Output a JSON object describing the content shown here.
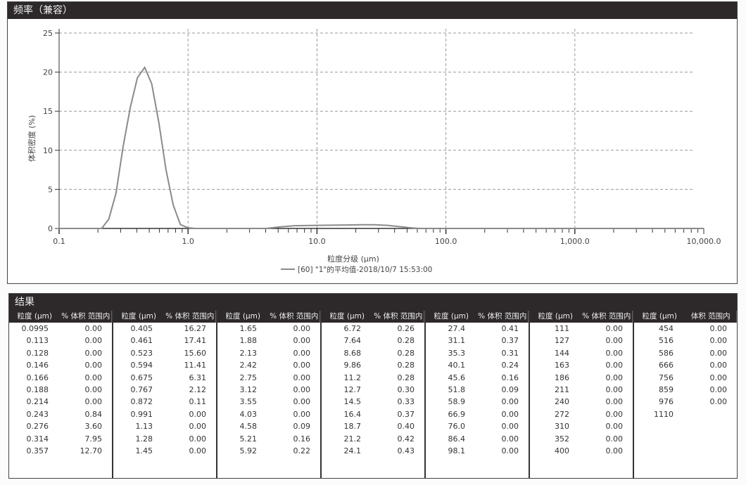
{
  "chart_panel": {
    "title": "频率（兼容）"
  },
  "chart_data": {
    "type": "line",
    "xlabel": "粒度分级 (µm)",
    "ylabel": "体积密度 (%)",
    "x_scale": "log",
    "xlim": [
      0.1,
      10000
    ],
    "ylim": [
      0,
      25
    ],
    "x_ticks": [
      "0.1",
      "1.0",
      "10.0",
      "100.0",
      "1,000.0",
      "10,000.0"
    ],
    "y_ticks": [
      "0",
      "5",
      "10",
      "15",
      "20",
      "25"
    ],
    "grid": true,
    "legend_position": "bottom-center",
    "series": [
      {
        "name": "[60] \"1\"的平均值-2018/10/7 15:53:00",
        "color": "#8a8a8a",
        "x": [
          0.0995,
          0.214,
          0.243,
          0.276,
          0.314,
          0.357,
          0.405,
          0.461,
          0.523,
          0.594,
          0.675,
          0.767,
          0.872,
          0.991,
          1.13,
          4.03,
          4.58,
          5.21,
          6.72,
          9.86,
          14.5,
          21.2,
          27.4,
          35.3,
          45.6,
          51.8,
          58.9,
          66.9,
          10000
        ],
        "y": [
          0,
          0,
          1.2,
          4.5,
          10.5,
          15.5,
          19.3,
          20.6,
          18.5,
          13.5,
          7.5,
          3.0,
          0.5,
          0.1,
          0,
          0,
          0.1,
          0.2,
          0.35,
          0.4,
          0.42,
          0.47,
          0.48,
          0.4,
          0.2,
          0.1,
          0.02,
          0,
          0
        ]
      }
    ]
  },
  "results": {
    "title": "结果",
    "headers": [
      [
        "粒度 (µm)",
        "% 体积 范围内"
      ],
      [
        "粒度 (µm)",
        "% 体积 范围内"
      ],
      [
        "粒度 (µm)",
        "% 体积 范围内"
      ],
      [
        "粒度 (µm)",
        "% 体积 范围内"
      ],
      [
        "粒度 (µm)",
        "% 体积 范围内"
      ],
      [
        "粒度 (µm)",
        "% 体积 范围内"
      ],
      [
        "粒度 (µm)",
        "体积 范围内"
      ]
    ],
    "groups": [
      [
        [
          "0.0995",
          "0.00"
        ],
        [
          "0.113",
          "0.00"
        ],
        [
          "0.128",
          "0.00"
        ],
        [
          "0.146",
          "0.00"
        ],
        [
          "0.166",
          "0.00"
        ],
        [
          "0.188",
          "0.00"
        ],
        [
          "0.214",
          "0.00"
        ],
        [
          "0.243",
          "0.84"
        ],
        [
          "0.276",
          "3.60"
        ],
        [
          "0.314",
          "7.95"
        ],
        [
          "0.357",
          "12.70"
        ]
      ],
      [
        [
          "0.405",
          "16.27"
        ],
        [
          "0.461",
          "17.41"
        ],
        [
          "0.523",
          "15.60"
        ],
        [
          "0.594",
          "11.41"
        ],
        [
          "0.675",
          "6.31"
        ],
        [
          "0.767",
          "2.12"
        ],
        [
          "0.872",
          "0.11"
        ],
        [
          "0.991",
          "0.00"
        ],
        [
          "1.13",
          "0.00"
        ],
        [
          "1.28",
          "0.00"
        ],
        [
          "1.45",
          "0.00"
        ]
      ],
      [
        [
          "1.65",
          "0.00"
        ],
        [
          "1.88",
          "0.00"
        ],
        [
          "2.13",
          "0.00"
        ],
        [
          "2.42",
          "0.00"
        ],
        [
          "2.75",
          "0.00"
        ],
        [
          "3.12",
          "0.00"
        ],
        [
          "3.55",
          "0.00"
        ],
        [
          "4.03",
          "0.00"
        ],
        [
          "4.58",
          "0.09"
        ],
        [
          "5.21",
          "0.16"
        ],
        [
          "5.92",
          "0.22"
        ]
      ],
      [
        [
          "6.72",
          "0.26"
        ],
        [
          "7.64",
          "0.28"
        ],
        [
          "8.68",
          "0.28"
        ],
        [
          "9.86",
          "0.28"
        ],
        [
          "11.2",
          "0.28"
        ],
        [
          "12.7",
          "0.30"
        ],
        [
          "14.5",
          "0.33"
        ],
        [
          "16.4",
          "0.37"
        ],
        [
          "18.7",
          "0.40"
        ],
        [
          "21.2",
          "0.42"
        ],
        [
          "24.1",
          "0.43"
        ]
      ],
      [
        [
          "27.4",
          "0.41"
        ],
        [
          "31.1",
          "0.37"
        ],
        [
          "35.3",
          "0.31"
        ],
        [
          "40.1",
          "0.24"
        ],
        [
          "45.6",
          "0.16"
        ],
        [
          "51.8",
          "0.09"
        ],
        [
          "58.9",
          "0.00"
        ],
        [
          "66.9",
          "0.00"
        ],
        [
          "76.0",
          "0.00"
        ],
        [
          "86.4",
          "0.00"
        ],
        [
          "98.1",
          "0.00"
        ]
      ],
      [
        [
          "111",
          "0.00"
        ],
        [
          "127",
          "0.00"
        ],
        [
          "144",
          "0.00"
        ],
        [
          "163",
          "0.00"
        ],
        [
          "186",
          "0.00"
        ],
        [
          "211",
          "0.00"
        ],
        [
          "240",
          "0.00"
        ],
        [
          "272",
          "0.00"
        ],
        [
          "310",
          "0.00"
        ],
        [
          "352",
          "0.00"
        ],
        [
          "400",
          "0.00"
        ]
      ],
      [
        [
          "454",
          "0.00"
        ],
        [
          "516",
          "0.00"
        ],
        [
          "586",
          "0.00"
        ],
        [
          "666",
          "0.00"
        ],
        [
          "756",
          "0.00"
        ],
        [
          "859",
          "0.00"
        ],
        [
          "976",
          "0.00"
        ],
        [
          "1110",
          ""
        ]
      ]
    ]
  }
}
